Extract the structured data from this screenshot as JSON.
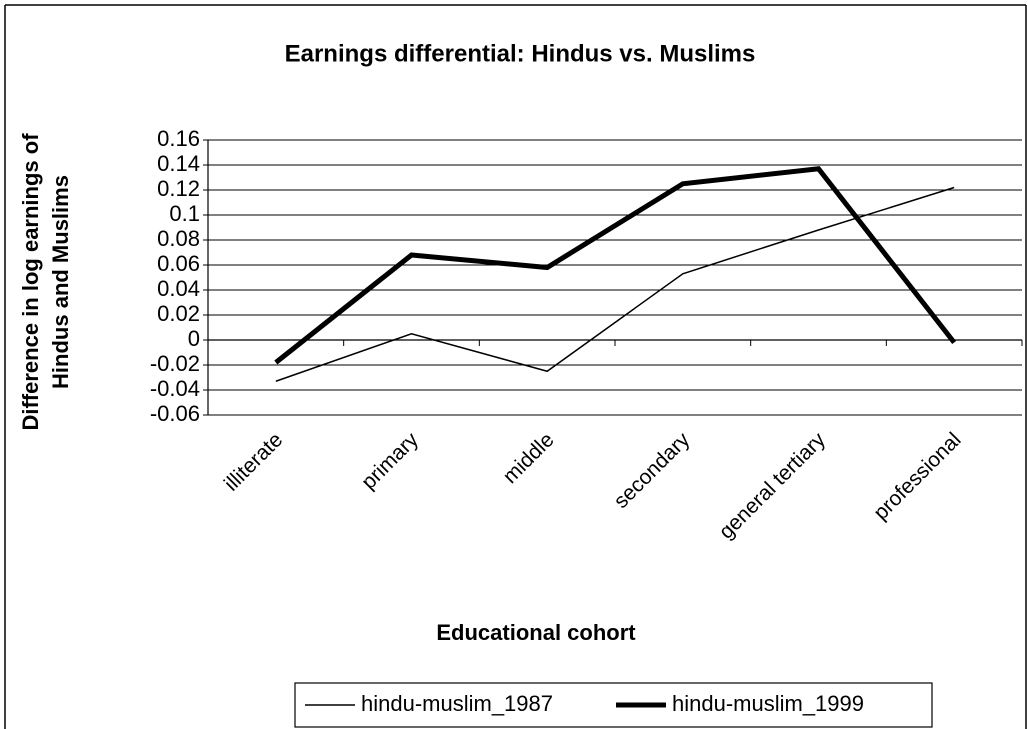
{
  "chart_data": {
    "type": "line",
    "title": "Earnings differential: Hindus vs. Muslims",
    "y_label": [
      "Difference in log earnings of",
      "Hindus and Muslims"
    ],
    "x_label": "Educational cohort",
    "categories": [
      "illiterate",
      "primary",
      "middle",
      "secondary",
      "general tertiary",
      "professional"
    ],
    "series": [
      {
        "name": "hindu-muslim_1987",
        "color": "#000000",
        "values": [
          -0.033,
          0.005,
          -0.025,
          0.053,
          0.088,
          0.122
        ]
      },
      {
        "name": "hindu-muslim_1999",
        "color": "#000000",
        "values": [
          -0.018,
          0.068,
          0.058,
          0.125,
          0.137,
          -0.002
        ]
      }
    ],
    "ylim": [
      -0.06,
      0.16
    ],
    "yticks": [
      -0.06,
      -0.04,
      -0.02,
      0,
      0.02,
      0.04,
      0.06,
      0.08,
      0.1,
      0.12,
      0.14,
      0.16
    ],
    "grid": true,
    "legend": "bottom"
  }
}
